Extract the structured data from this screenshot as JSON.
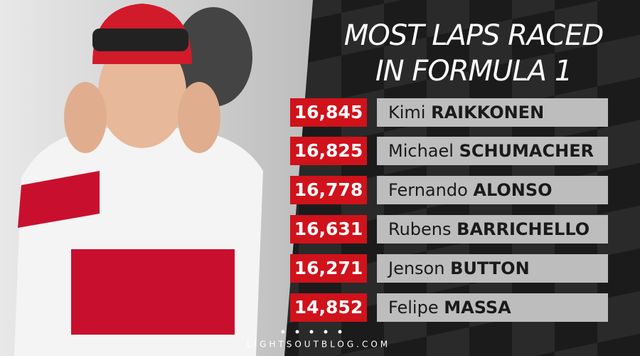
{
  "header": {
    "title_lines": [
      "MOST LAPS RACED",
      "IN FORMULA 1"
    ]
  },
  "rows": [
    {
      "laps": "16,845",
      "first_name": "Kimi",
      "last_name": "RAIKKONEN"
    },
    {
      "laps": "16,825",
      "first_name": "Michael",
      "last_name": "SCHUMACHER"
    },
    {
      "laps": "16,778",
      "first_name": "Fernando",
      "last_name": "ALONSO"
    },
    {
      "laps": "16,631",
      "first_name": "Rubens",
      "last_name": "BARRICHELLO"
    },
    {
      "laps": "16,271",
      "first_name": "Jenson",
      "last_name": "BUTTON"
    },
    {
      "laps": "14,852",
      "first_name": "Felipe",
      "last_name": "MASSA"
    }
  ],
  "footer": {
    "site": "LIGHTSOUTBLOG.COM"
  }
}
